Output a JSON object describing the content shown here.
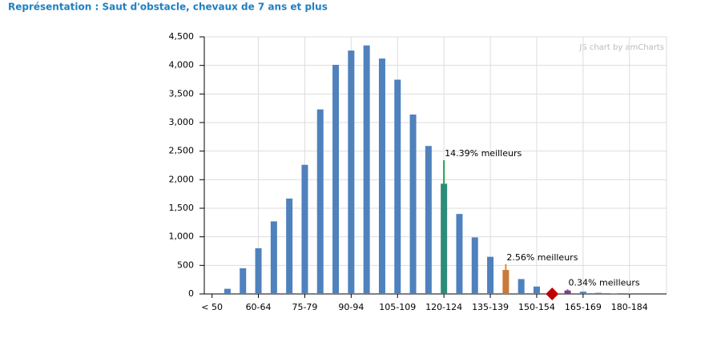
{
  "chart_data": {
    "type": "bar",
    "title": "Représentation : Saut d'obstacle, chevaux de 7 ans et plus",
    "watermark": "JS chart by amCharts",
    "categories": [
      "< 50",
      null,
      null,
      "60-64",
      null,
      null,
      "75-79",
      null,
      null,
      "90-94",
      null,
      null,
      "105-109",
      null,
      null,
      "120-124",
      null,
      null,
      "135-139",
      null,
      null,
      "150-154",
      null,
      null,
      "165-169",
      null,
      null,
      "180-184",
      null
    ],
    "values": [
      0,
      90,
      450,
      800,
      1270,
      1670,
      2260,
      3230,
      4010,
      4260,
      4350,
      4120,
      3750,
      3140,
      2590,
      1930,
      1400,
      990,
      650,
      420,
      260,
      130,
      20,
      60,
      40,
      20,
      10,
      0,
      0
    ],
    "color": "#4f81bd",
    "highlights": [
      {
        "at": 15,
        "color": "#2e8b7a"
      },
      {
        "at": 19,
        "color": "#c97a3a"
      },
      {
        "at": 23,
        "color": "#7a3f8f"
      }
    ],
    "annotations": [
      {
        "text": "14.39% meilleurs",
        "at": 15,
        "y": 2340,
        "color": "#1ea34a"
      },
      {
        "text": "2.56% meilleurs",
        "at": 19,
        "y": 520,
        "color": "#e8892c"
      },
      {
        "text": "0.34% meilleurs",
        "at": 23,
        "y": 80,
        "color": "#7a3f8f"
      }
    ],
    "marker": {
      "at": 22,
      "value": 0,
      "color": "#c00000"
    },
    "ylim": [
      0,
      4500
    ],
    "yticks": [
      0,
      {
        "value": 500,
        "label": "500"
      },
      {
        "value": 1000,
        "label": "1,000"
      },
      {
        "value": 1500,
        "label": "1,500"
      },
      {
        "value": 2000,
        "label": "2,000"
      },
      {
        "value": 2500,
        "label": "2,500"
      },
      {
        "value": 3000,
        "label": "3,000"
      },
      {
        "value": 3500,
        "label": "3,500"
      },
      {
        "value": 4000,
        "label": "4,000"
      },
      {
        "value": 4500,
        "label": "4,500"
      }
    ],
    "grid": true
  }
}
